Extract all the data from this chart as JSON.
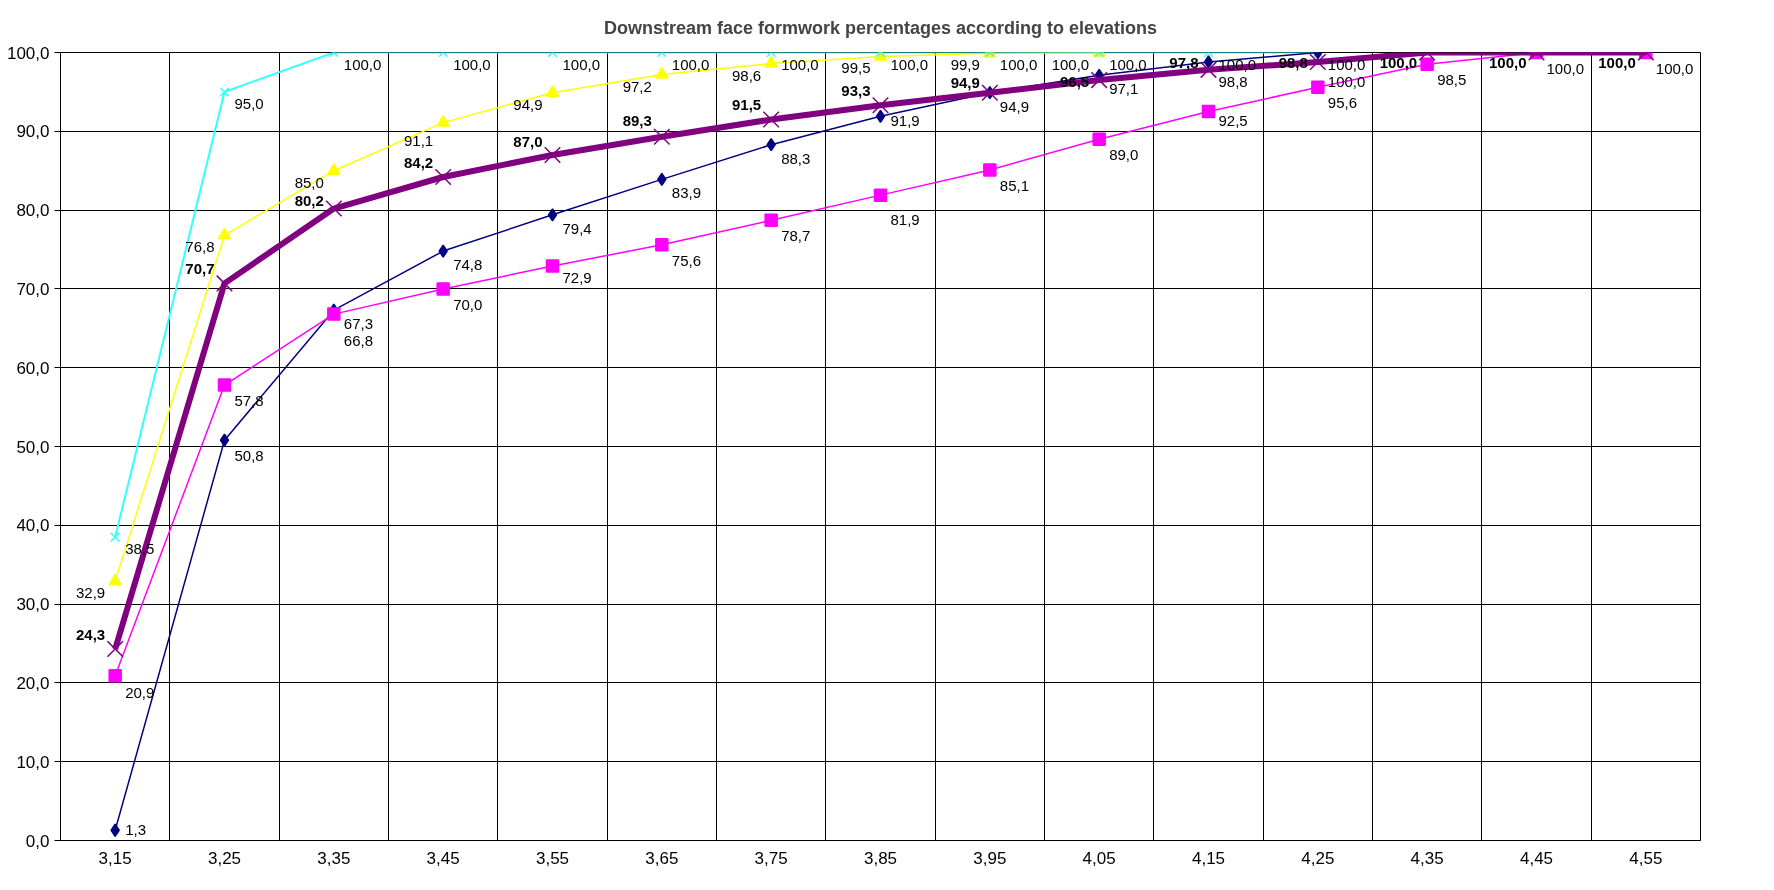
{
  "chart_data": {
    "type": "line",
    "title": "Downstream face formwork percentages according to elevations",
    "categories": [
      "3,15",
      "3,25",
      "3,35",
      "3,45",
      "3,55",
      "3,65",
      "3,75",
      "3,85",
      "3,95",
      "4,05",
      "4,15",
      "4,25",
      "4,35",
      "4,45",
      "4,55"
    ],
    "ylim": [
      0,
      100
    ],
    "yticks": [
      {
        "value": 0,
        "label": "0,0"
      },
      {
        "value": 10,
        "label": "10,0"
      },
      {
        "value": 20,
        "label": "20,0"
      },
      {
        "value": 30,
        "label": "30,0"
      },
      {
        "value": 40,
        "label": "40,0"
      },
      {
        "value": 50,
        "label": "50,0"
      },
      {
        "value": 60,
        "label": "60,0"
      },
      {
        "value": 70,
        "label": "70,0"
      },
      {
        "value": 80,
        "label": "80,0"
      },
      {
        "value": 90,
        "label": "90,0"
      },
      {
        "value": 100,
        "label": "100,0"
      }
    ],
    "grid": true,
    "series": [
      {
        "color": "#ffff00",
        "marker": "triangle",
        "values": [
          32.9,
          76.8,
          85.0,
          91.1,
          94.9,
          97.2,
          98.6,
          99.5,
          99.9,
          100,
          null,
          null,
          null,
          null,
          null
        ],
        "value_labels": [
          "32,9",
          "76,8",
          "85,0",
          "91,1",
          "94,9",
          "97,2",
          "98,6",
          "99,5",
          "99,9",
          "100,0",
          null,
          null,
          null,
          null,
          null
        ]
      },
      {
        "color": "#33ffff",
        "marker": "cross",
        "values": [
          38.5,
          95.0,
          100,
          100,
          100,
          100,
          100,
          100,
          100,
          100,
          100,
          100,
          null,
          null,
          null
        ],
        "value_labels": [
          "38,5",
          "95,0",
          "100,0",
          "100,0",
          "100,0",
          "100,0",
          "100,0",
          "100,0",
          "100,0",
          "100,0",
          "100,0",
          "100,0",
          null,
          null,
          null
        ]
      },
      {
        "color": "#000080",
        "marker": "diamond",
        "values": [
          1.3,
          50.8,
          67.3,
          74.8,
          79.4,
          83.9,
          88.3,
          91.9,
          94.9,
          97.1,
          98.8,
          100,
          null,
          null,
          null
        ],
        "value_labels": [
          "1,3",
          "50,8",
          "67,3",
          "74,8",
          "79,4",
          "83,9",
          "88,3",
          "91,9",
          "94,9",
          "97,1",
          "98,8",
          "100,0",
          null,
          null,
          null
        ]
      },
      {
        "color": "#ff00ff",
        "marker": "square",
        "values": [
          20.9,
          57.8,
          66.8,
          70.0,
          72.9,
          75.6,
          78.7,
          81.9,
          85.1,
          89.0,
          92.5,
          95.6,
          98.5,
          100,
          100
        ],
        "value_labels": [
          "20,9",
          "57,8",
          "66,8",
          "70,0",
          "72,9",
          "75,6",
          "78,7",
          "81,9",
          "85,1",
          "89,0",
          "92,5",
          "95,6",
          "98,5",
          "100,0",
          "100,0"
        ]
      },
      {
        "color": "#800080",
        "marker": "cross",
        "values": [
          24.3,
          70.7,
          80.2,
          84.2,
          87.0,
          89.3,
          91.5,
          93.3,
          94.9,
          96.5,
          97.8,
          98.8,
          100,
          100,
          100
        ],
        "value_labels": [
          "24,3",
          "70,7",
          "80,2",
          "84,2",
          "87,0",
          "89,3",
          "91,5",
          "93,3",
          "94,9",
          "96,5",
          "97,8",
          "98,8",
          "100,0",
          "100,0",
          "100,0"
        ]
      }
    ]
  }
}
